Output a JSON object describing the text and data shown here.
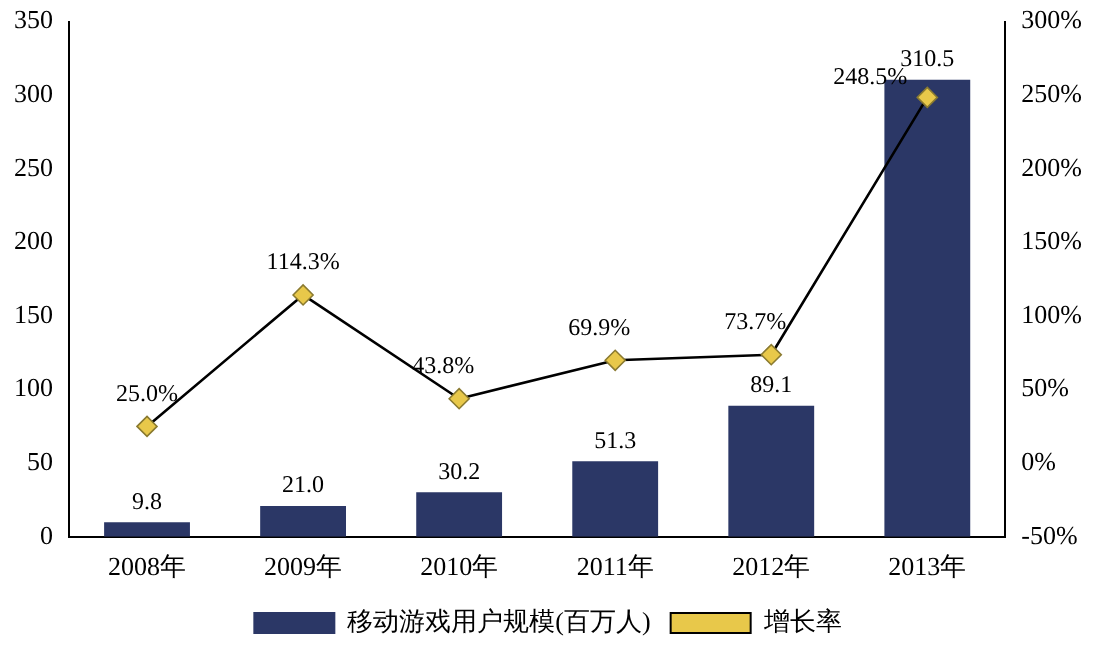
{
  "chart_data": {
    "type": "bar",
    "categories": [
      "2008年",
      "2009年",
      "2010年",
      "2011年",
      "2012年",
      "2013年"
    ],
    "series": [
      {
        "name": "移动游戏用户规模(百万人)",
        "color": "#2b3766",
        "values": [
          9.8,
          21.0,
          30.2,
          51.3,
          89.1,
          310.5
        ],
        "value_labels": [
          "9.8",
          "21.0",
          "30.2",
          "51.3",
          "89.1",
          "310.5"
        ]
      },
      {
        "name": "增长率",
        "type": "line",
        "axis": "y2",
        "color": "#e8c84a",
        "marker": "diamond",
        "values": [
          25.0,
          114.3,
          43.8,
          69.9,
          73.7,
          248.5
        ],
        "value_labels": [
          "25.0%",
          "114.3%",
          "43.8%",
          "69.9%",
          "73.7%",
          "248.5%"
        ]
      }
    ],
    "ylim": [
      0,
      350
    ],
    "yticks": [
      0,
      50,
      100,
      150,
      200,
      250,
      300,
      350
    ],
    "y2lim": [
      -50,
      300
    ],
    "y2ticks": [
      {
        "value": -50,
        "label": "-50%"
      },
      {
        "value": 0,
        "label": "0%"
      },
      {
        "value": 50,
        "label": "50%"
      },
      {
        "value": 100,
        "label": "100%"
      },
      {
        "value": 150,
        "label": "150%"
      },
      {
        "value": 200,
        "label": "200%"
      },
      {
        "value": 250,
        "label": "250%"
      },
      {
        "value": 300,
        "label": "300%"
      }
    ],
    "grid": false,
    "legend": "bottom"
  }
}
